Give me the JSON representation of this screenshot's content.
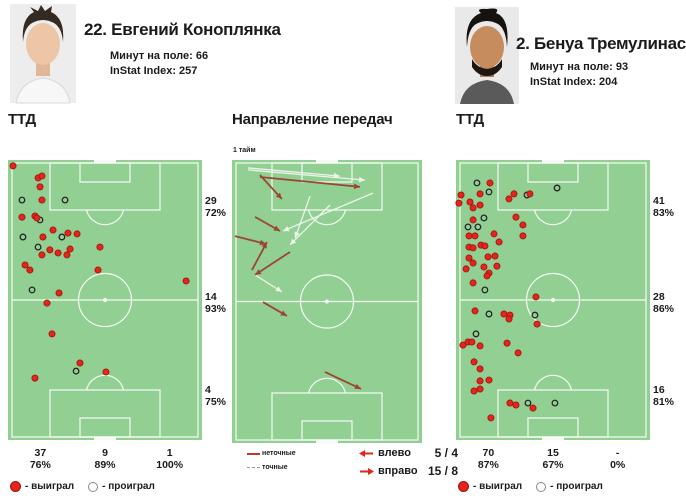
{
  "players": {
    "left": {
      "name": "22. Евгений Коноплянка",
      "minutes": "Минут на поле: 66",
      "instat_index": "InStat Index: 257"
    },
    "right": {
      "name": "2. Бенуа Тремулинас",
      "minutes": "Минут на поле: 93",
      "instat_index": "InStat Index: 204"
    }
  },
  "sections": {
    "ttd_left": "ТТД",
    "passes": "Направление передач",
    "ttd_right": "ТТД"
  },
  "legend": {
    "won": "- выиграл",
    "lost": "- проиграл"
  },
  "colors": {
    "pitch": "#92CF92",
    "pitch_line": "#FFFFFF",
    "won_dot": "#E3251C",
    "won_dot_stroke": "#9E1410",
    "lost_dot_stroke": "#262626",
    "pass_inaccurate": "#9C3F2E",
    "pass_accurate": "#F4F9F4",
    "legend_arrow": "#E3251C"
  },
  "chart_data": [
    {
      "id": "ttd_left",
      "type": "scatter",
      "title": "ТТД",
      "player": "22. Евгений Коноплянка",
      "zone_stats_right": [
        {
          "count": "29",
          "pct": "72%"
        },
        {
          "count": "14",
          "pct": "93%"
        },
        {
          "count": "4",
          "pct": "75%"
        }
      ],
      "column_stats_bottom": [
        {
          "count": "37",
          "pct": "76%"
        },
        {
          "count": "9",
          "pct": "89%"
        },
        {
          "count": "1",
          "pct": "100%"
        }
      ],
      "legend": [
        {
          "label": "- выиграл",
          "marker": "won"
        },
        {
          "label": "- проиграл",
          "marker": "lost"
        }
      ],
      "points": [
        {
          "x": 2.6,
          "y": 2.1,
          "r": "won"
        },
        {
          "x": 15.5,
          "y": 6.4,
          "r": "won"
        },
        {
          "x": 17.5,
          "y": 5.7,
          "r": "won"
        },
        {
          "x": 16.5,
          "y": 9.6,
          "r": "won"
        },
        {
          "x": 7.2,
          "y": 14.3,
          "r": "lost"
        },
        {
          "x": 17.5,
          "y": 14.3,
          "r": "won"
        },
        {
          "x": 29.4,
          "y": 14.3,
          "r": "lost"
        },
        {
          "x": 7.2,
          "y": 20.4,
          "r": "won"
        },
        {
          "x": 13.9,
          "y": 20.0,
          "r": "won"
        },
        {
          "x": 16.5,
          "y": 21.4,
          "r": "lost"
        },
        {
          "x": 14.9,
          "y": 20.7,
          "r": "won"
        },
        {
          "x": 23.2,
          "y": 25.0,
          "r": "won"
        },
        {
          "x": 30.9,
          "y": 26.1,
          "r": "won"
        },
        {
          "x": 7.7,
          "y": 27.5,
          "r": "lost"
        },
        {
          "x": 18.0,
          "y": 27.5,
          "r": "won"
        },
        {
          "x": 27.8,
          "y": 27.5,
          "r": "lost"
        },
        {
          "x": 35.6,
          "y": 26.4,
          "r": "won"
        },
        {
          "x": 15.5,
          "y": 31.1,
          "r": "lost"
        },
        {
          "x": 17.5,
          "y": 33.9,
          "r": "won"
        },
        {
          "x": 21.6,
          "y": 32.1,
          "r": "won"
        },
        {
          "x": 25.8,
          "y": 33.2,
          "r": "won"
        },
        {
          "x": 30.4,
          "y": 33.9,
          "r": "won"
        },
        {
          "x": 32.0,
          "y": 31.8,
          "r": "won"
        },
        {
          "x": 47.4,
          "y": 31.1,
          "r": "won"
        },
        {
          "x": 8.8,
          "y": 37.5,
          "r": "won"
        },
        {
          "x": 11.3,
          "y": 39.3,
          "r": "won"
        },
        {
          "x": 46.4,
          "y": 39.3,
          "r": "won"
        },
        {
          "x": 91.8,
          "y": 43.2,
          "r": "won"
        },
        {
          "x": 12.4,
          "y": 46.4,
          "r": "lost"
        },
        {
          "x": 26.3,
          "y": 47.5,
          "r": "won"
        },
        {
          "x": 20.1,
          "y": 51.1,
          "r": "won"
        },
        {
          "x": 22.7,
          "y": 62.1,
          "r": "won"
        },
        {
          "x": 37.1,
          "y": 72.5,
          "r": "won"
        },
        {
          "x": 35.1,
          "y": 75.4,
          "r": "lost"
        },
        {
          "x": 50.5,
          "y": 75.7,
          "r": "won"
        },
        {
          "x": 13.9,
          "y": 77.9,
          "r": "won"
        }
      ]
    },
    {
      "id": "pass_directions",
      "type": "arrows",
      "title": "Направление передач",
      "half_label": "1 тайм",
      "line_legend": [
        {
          "label": "неточные",
          "style": "red-solid"
        },
        {
          "label": "точные",
          "style": "white-dashed"
        }
      ],
      "direction_legend": [
        {
          "label": "влево",
          "value": "5 / 4"
        },
        {
          "label": "вправо",
          "value": "15 / 8"
        }
      ],
      "arrows": [
        {
          "x1": 8.4,
          "y1": 2.8,
          "x2": 56.8,
          "y2": 5.7,
          "k": "accurate"
        },
        {
          "x1": 8.4,
          "y1": 3.5,
          "x2": 70.0,
          "y2": 7.1,
          "k": "accurate"
        },
        {
          "x1": 74.2,
          "y1": 11.7,
          "x2": 26.8,
          "y2": 25.1,
          "k": "accurate"
        },
        {
          "x1": 41.1,
          "y1": 12.7,
          "x2": 33.2,
          "y2": 27.6,
          "k": "accurate"
        },
        {
          "x1": 51.6,
          "y1": 15.9,
          "x2": 30.5,
          "y2": 30.0,
          "k": "accurate"
        },
        {
          "x1": 12.1,
          "y1": 40.6,
          "x2": 26.3,
          "y2": 46.6,
          "k": "accurate"
        },
        {
          "x1": 14.7,
          "y1": 5.3,
          "x2": 26.3,
          "y2": 13.8,
          "k": "inaccurate"
        },
        {
          "x1": 14.7,
          "y1": 6.0,
          "x2": 67.4,
          "y2": 9.5,
          "k": "inaccurate"
        },
        {
          "x1": 12.1,
          "y1": 20.1,
          "x2": 25.3,
          "y2": 25.1,
          "k": "inaccurate"
        },
        {
          "x1": 1.6,
          "y1": 26.9,
          "x2": 17.9,
          "y2": 29.7,
          "k": "inaccurate"
        },
        {
          "x1": 10.5,
          "y1": 38.9,
          "x2": 18.4,
          "y2": 29.0,
          "k": "inaccurate"
        },
        {
          "x1": 30.5,
          "y1": 32.5,
          "x2": 12.1,
          "y2": 40.6,
          "k": "inaccurate"
        },
        {
          "x1": 16.3,
          "y1": 50.2,
          "x2": 28.9,
          "y2": 55.1,
          "k": "inaccurate"
        },
        {
          "x1": 48.9,
          "y1": 74.9,
          "x2": 67.9,
          "y2": 80.9,
          "k": "inaccurate"
        }
      ]
    },
    {
      "id": "ttd_right",
      "type": "scatter",
      "title": "ТТД",
      "player": "2. Бенуа Тремулинас",
      "zone_stats_right": [
        {
          "count": "41",
          "pct": "83%"
        },
        {
          "count": "28",
          "pct": "86%"
        },
        {
          "count": "16",
          "pct": "81%"
        }
      ],
      "column_stats_bottom": [
        {
          "count": "70",
          "pct": "87%"
        },
        {
          "count": "15",
          "pct": "67%"
        },
        {
          "count": "-",
          "pct": "0%"
        }
      ],
      "legend": [
        {
          "label": "- выиграл",
          "marker": "won"
        },
        {
          "label": "- проиграл",
          "marker": "lost"
        }
      ],
      "points": [
        {
          "x": 10.8,
          "y": 8.2,
          "r": "lost"
        },
        {
          "x": 17.5,
          "y": 8.2,
          "r": "won"
        },
        {
          "x": 17.0,
          "y": 11.4,
          "r": "lost"
        },
        {
          "x": 2.6,
          "y": 12.5,
          "r": "won"
        },
        {
          "x": 12.4,
          "y": 12.1,
          "r": "won"
        },
        {
          "x": 29.9,
          "y": 12.1,
          "r": "won"
        },
        {
          "x": 36.6,
          "y": 12.5,
          "r": "lost"
        },
        {
          "x": 38.1,
          "y": 12.1,
          "r": "won"
        },
        {
          "x": 52.1,
          "y": 10.0,
          "r": "lost"
        },
        {
          "x": 7.2,
          "y": 15.0,
          "r": "won"
        },
        {
          "x": 1.5,
          "y": 15.4,
          "r": "won"
        },
        {
          "x": 12.4,
          "y": 16.1,
          "r": "won"
        },
        {
          "x": 27.3,
          "y": 13.9,
          "r": "won"
        },
        {
          "x": 8.8,
          "y": 17.1,
          "r": "won"
        },
        {
          "x": 14.4,
          "y": 20.7,
          "r": "lost"
        },
        {
          "x": 8.8,
          "y": 21.4,
          "r": "won"
        },
        {
          "x": 30.9,
          "y": 20.4,
          "r": "won"
        },
        {
          "x": 6.2,
          "y": 23.9,
          "r": "lost"
        },
        {
          "x": 11.3,
          "y": 23.9,
          "r": "lost"
        },
        {
          "x": 34.5,
          "y": 23.2,
          "r": "won"
        },
        {
          "x": 6.7,
          "y": 27.1,
          "r": "won"
        },
        {
          "x": 9.8,
          "y": 27.1,
          "r": "won"
        },
        {
          "x": 19.6,
          "y": 26.4,
          "r": "won"
        },
        {
          "x": 34.5,
          "y": 27.1,
          "r": "won"
        },
        {
          "x": 22.2,
          "y": 29.3,
          "r": "won"
        },
        {
          "x": 12.9,
          "y": 30.4,
          "r": "won"
        },
        {
          "x": 6.7,
          "y": 31.1,
          "r": "won"
        },
        {
          "x": 8.8,
          "y": 31.4,
          "r": "won"
        },
        {
          "x": 14.9,
          "y": 30.7,
          "r": "won"
        },
        {
          "x": 16.5,
          "y": 34.6,
          "r": "won"
        },
        {
          "x": 20.1,
          "y": 34.3,
          "r": "won"
        },
        {
          "x": 6.7,
          "y": 35.0,
          "r": "won"
        },
        {
          "x": 8.8,
          "y": 36.8,
          "r": "won"
        },
        {
          "x": 14.4,
          "y": 38.2,
          "r": "won"
        },
        {
          "x": 21.1,
          "y": 37.9,
          "r": "won"
        },
        {
          "x": 5.2,
          "y": 38.9,
          "r": "won"
        },
        {
          "x": 17.0,
          "y": 40.4,
          "r": "won"
        },
        {
          "x": 16.0,
          "y": 41.4,
          "r": "won"
        },
        {
          "x": 8.8,
          "y": 43.9,
          "r": "won"
        },
        {
          "x": 14.9,
          "y": 46.4,
          "r": "lost"
        },
        {
          "x": 41.2,
          "y": 48.9,
          "r": "won"
        },
        {
          "x": 9.8,
          "y": 53.9,
          "r": "won"
        },
        {
          "x": 17.0,
          "y": 55.0,
          "r": "lost"
        },
        {
          "x": 24.7,
          "y": 55.0,
          "r": "won"
        },
        {
          "x": 27.8,
          "y": 55.4,
          "r": "won"
        },
        {
          "x": 27.3,
          "y": 56.8,
          "r": "won"
        },
        {
          "x": 40.7,
          "y": 55.4,
          "r": "lost"
        },
        {
          "x": 41.8,
          "y": 58.6,
          "r": "won"
        },
        {
          "x": 10.3,
          "y": 62.1,
          "r": "lost"
        },
        {
          "x": 3.6,
          "y": 66.1,
          "r": "won"
        },
        {
          "x": 6.2,
          "y": 65.0,
          "r": "won"
        },
        {
          "x": 8.2,
          "y": 65.0,
          "r": "won"
        },
        {
          "x": 12.4,
          "y": 66.4,
          "r": "won"
        },
        {
          "x": 26.3,
          "y": 65.4,
          "r": "won"
        },
        {
          "x": 32.0,
          "y": 68.9,
          "r": "won"
        },
        {
          "x": 9.3,
          "y": 72.1,
          "r": "won"
        },
        {
          "x": 12.4,
          "y": 74.6,
          "r": "won"
        },
        {
          "x": 12.4,
          "y": 78.9,
          "r": "won"
        },
        {
          "x": 17.0,
          "y": 78.6,
          "r": "won"
        },
        {
          "x": 9.3,
          "y": 82.5,
          "r": "won"
        },
        {
          "x": 12.4,
          "y": 81.8,
          "r": "won"
        },
        {
          "x": 27.8,
          "y": 86.8,
          "r": "won"
        },
        {
          "x": 30.9,
          "y": 87.5,
          "r": "won"
        },
        {
          "x": 37.1,
          "y": 86.8,
          "r": "lost"
        },
        {
          "x": 39.7,
          "y": 88.6,
          "r": "won"
        },
        {
          "x": 51.0,
          "y": 86.8,
          "r": "lost"
        },
        {
          "x": 18.0,
          "y": 92.1,
          "r": "won"
        }
      ]
    }
  ]
}
